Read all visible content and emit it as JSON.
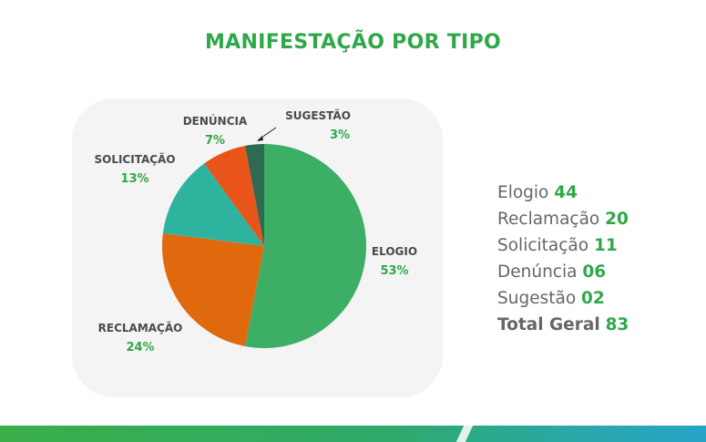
{
  "title": "MANIFESTAÇÃO POR TIPO",
  "chart_data": {
    "type": "pie",
    "categories": [
      "ELOGIO",
      "RECLAMAÇÃO",
      "SOLICITAÇÃO",
      "DENÚNCIA",
      "SUGESTÃO"
    ],
    "values": [
      53,
      24,
      13,
      7,
      3
    ],
    "percent_labels": [
      "53%",
      "24%",
      "13%",
      "7%",
      "3%"
    ],
    "colors": [
      "#3cae65",
      "#e0690e",
      "#2eb49e",
      "#e8541a",
      "#2e6a4f"
    ]
  },
  "legend": {
    "items": [
      {
        "name": "Elogio",
        "count": "44"
      },
      {
        "name": "Reclamação",
        "count": "20"
      },
      {
        "name": "Solicitação",
        "count": "11"
      },
      {
        "name": "Denúncia",
        "count": "06"
      },
      {
        "name": "Sugestão",
        "count": "02"
      }
    ],
    "total": {
      "name": "Total Geral",
      "count": "83"
    }
  }
}
